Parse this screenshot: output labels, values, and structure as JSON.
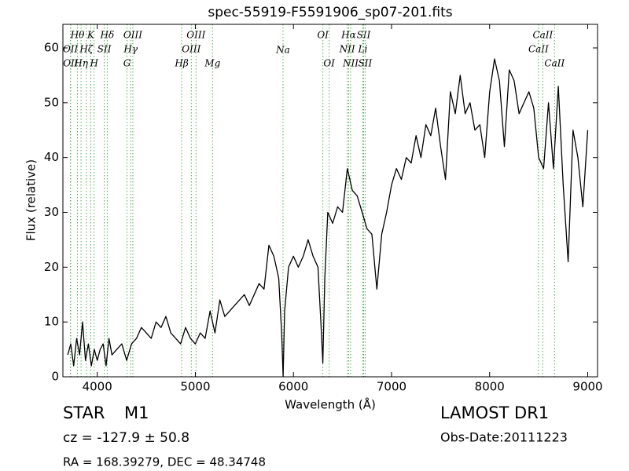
{
  "chart_data": {
    "type": "line",
    "title": "spec-55919-F5591906_sp07-201.fits",
    "x_label": "Wavelength (Å)",
    "y_label": "Flux (relative)",
    "xlim": [
      3650,
      9100
    ],
    "ylim": [
      0,
      64.3
    ],
    "xticks": [
      4000,
      5000,
      6000,
      7000,
      8000,
      9000
    ],
    "yticks": [
      0,
      10,
      20,
      30,
      40,
      50,
      60
    ],
    "series": [
      {
        "color": "#000000",
        "x": [
          3700,
          3730,
          3760,
          3790,
          3820,
          3850,
          3880,
          3910,
          3940,
          3970,
          4000,
          4030,
          4060,
          4090,
          4120,
          4150,
          4200,
          4250,
          4300,
          4350,
          4400,
          4450,
          4500,
          4550,
          4600,
          4650,
          4700,
          4750,
          4800,
          4850,
          4900,
          4950,
          5000,
          5050,
          5100,
          5150,
          5200,
          5250,
          5300,
          5350,
          5400,
          5450,
          5500,
          5550,
          5600,
          5650,
          5700,
          5750,
          5800,
          5850,
          5880,
          5895,
          5910,
          5950,
          6000,
          6050,
          6100,
          6150,
          6200,
          6250,
          6280,
          6300,
          6320,
          6350,
          6400,
          6450,
          6500,
          6550,
          6600,
          6650,
          6700,
          6750,
          6800,
          6850,
          6900,
          6950,
          7000,
          7050,
          7100,
          7150,
          7200,
          7250,
          7300,
          7350,
          7400,
          7450,
          7500,
          7550,
          7600,
          7650,
          7700,
          7750,
          7800,
          7850,
          7900,
          7950,
          8000,
          8050,
          8100,
          8150,
          8200,
          8250,
          8300,
          8350,
          8400,
          8450,
          8500,
          8550,
          8600,
          8650,
          8700,
          8750,
          8800,
          8850,
          8900,
          8950,
          9000
        ],
        "values": [
          4,
          6,
          2,
          7,
          4,
          10,
          3,
          6,
          2,
          5,
          3,
          5,
          6,
          2,
          7,
          4,
          5,
          6,
          3,
          6,
          7,
          9,
          8,
          7,
          10,
          9,
          11,
          8,
          7,
          6,
          9,
          7,
          6,
          8,
          7,
          12,
          8,
          14,
          11,
          12,
          13,
          14,
          15,
          13,
          15,
          17,
          16,
          24,
          22,
          18,
          8,
          0,
          12,
          20,
          22,
          20,
          22,
          25,
          22,
          20,
          10,
          2.5,
          18,
          30,
          28,
          31,
          30,
          38,
          34,
          33,
          30,
          27,
          26,
          16,
          26,
          30,
          35,
          38,
          36,
          40,
          39,
          44,
          40,
          46,
          44,
          49,
          42,
          36,
          52,
          48,
          55,
          48,
          50,
          45,
          46,
          40,
          52,
          58,
          54,
          42,
          56,
          54,
          48,
          50,
          52,
          49,
          40,
          38,
          50,
          38,
          53,
          35,
          21,
          45,
          40,
          31,
          45
        ]
      }
    ],
    "spectral_lines": [
      {
        "label": "OII",
        "x": 3727
      },
      {
        "label": "OII",
        "x": 3729
      },
      {
        "label": "Hθ",
        "x": 3798
      },
      {
        "label": "Hη",
        "x": 3835
      },
      {
        "label": "Hζ",
        "x": 3889
      },
      {
        "label": "K",
        "x": 3934
      },
      {
        "label": "H",
        "x": 3968
      },
      {
        "label": "SII",
        "x": 4072
      },
      {
        "label": "Hδ",
        "x": 4102
      },
      {
        "label": "G",
        "x": 4304
      },
      {
        "label": "Hγ",
        "x": 4341
      },
      {
        "label": "OIII",
        "x": 4363
      },
      {
        "label": "Hβ",
        "x": 4861
      },
      {
        "label": "OIII",
        "x": 4959
      },
      {
        "label": "OIII",
        "x": 5007
      },
      {
        "label": "Mg",
        "x": 5175
      },
      {
        "label": "Na",
        "x": 5894
      },
      {
        "label": "OI",
        "x": 6300
      },
      {
        "label": "OI",
        "x": 6364
      },
      {
        "label": "NII",
        "x": 6548
      },
      {
        "label": "Hα",
        "x": 6563
      },
      {
        "label": "NII",
        "x": 6583
      },
      {
        "label": "Li",
        "x": 6707
      },
      {
        "label": "SII",
        "x": 6716
      },
      {
        "label": "SII",
        "x": 6731
      },
      {
        "label": "CaII",
        "x": 8498
      },
      {
        "label": "CaII",
        "x": 8542
      },
      {
        "label": "CaII",
        "x": 8662
      }
    ],
    "object_class": "STAR",
    "subclass": "M1",
    "redshift": "cz = -127.9 ± 50.8",
    "coordinates": "RA = 168.39279, DEC = 48.34748",
    "survey": "LAMOST DR1",
    "obs_date": "Obs-Date:20111223"
  }
}
